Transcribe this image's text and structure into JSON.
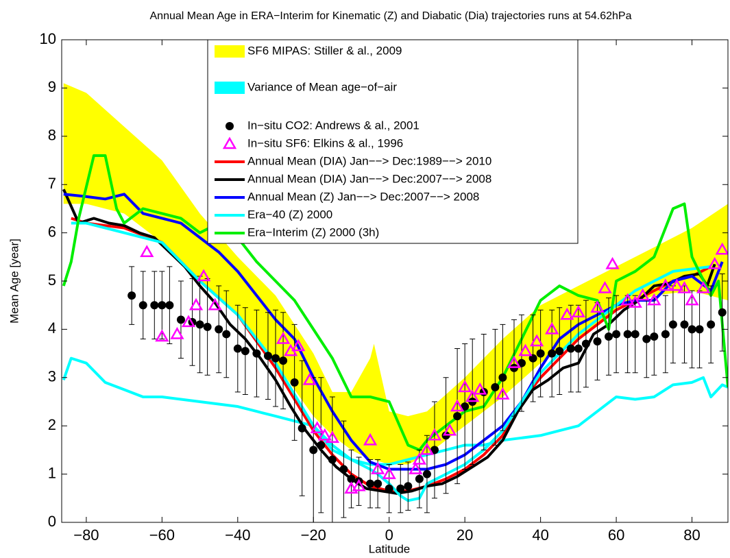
{
  "chart_data": {
    "type": "line",
    "title": "Annual Mean Age in ERA−Interim for Kinematic (Z) and Diabatic (Dia) trajectories runs at 54.62hPa",
    "xlabel": "Latitude",
    "ylabel": "Mean Age [year]",
    "xlim": [
      -86.5,
      89.5
    ],
    "ylim": [
      0,
      10
    ],
    "xticks": [
      {
        "value": -80,
        "label": "−80"
      },
      {
        "value": -60,
        "label": "−60"
      },
      {
        "value": -40,
        "label": "−40"
      },
      {
        "value": -20,
        "label": "−20"
      },
      0,
      20,
      40,
      60,
      80
    ],
    "yticks": [
      0,
      1,
      2,
      3,
      4,
      5,
      6,
      7,
      8,
      9,
      10
    ],
    "series": [
      {
        "name": "SF6 MIPAS: Stiller & al., 2009",
        "color": "#ffff00",
        "style": "band",
        "x": [
          -86,
          -80,
          -70,
          -60,
          -50,
          -40,
          -30,
          -20,
          -15,
          -10,
          -5,
          -4,
          0,
          5,
          10,
          20,
          30,
          40,
          50,
          60,
          70,
          80,
          89.5
        ],
        "high": [
          9.1,
          8.9,
          8.2,
          7.5,
          6.4,
          5.5,
          4.7,
          3.5,
          2.7,
          2.7,
          3.4,
          3.7,
          2.3,
          2.2,
          2.3,
          3.0,
          3.8,
          4.5,
          4.9,
          5.3,
          5.7,
          6.1,
          6.6
        ],
        "low": [
          6.6,
          6.6,
          6.4,
          5.8,
          5.0,
          4.3,
          3.3,
          2.2,
          1.8,
          1.5,
          1.3,
          1.3,
          1.2,
          1.2,
          1.4,
          2.0,
          2.6,
          3.3,
          3.8,
          4.4,
          4.7,
          4.8,
          4.6
        ]
      },
      {
        "name": "Variance of Mean age−of−air",
        "color": "#00ffff",
        "style": "patch-line",
        "x": [
          -86,
          -84,
          -80,
          -75,
          -70,
          -65,
          -60,
          -55,
          -50,
          -45,
          -40,
          -35,
          -30,
          -25,
          -20,
          -15,
          -10,
          -5,
          0,
          5,
          10,
          15,
          20,
          25,
          30,
          35,
          40,
          45,
          50,
          55,
          60,
          65,
          70,
          75,
          80,
          83,
          85,
          88,
          89.5
        ],
        "values": [
          2.95,
          3.4,
          3.3,
          2.9,
          2.75,
          2.6,
          2.6,
          2.55,
          2.5,
          2.45,
          2.4,
          2.3,
          2.2,
          2.1,
          2.0,
          1.5,
          1.3,
          1.2,
          1.2,
          1.3,
          1.4,
          1.5,
          1.6,
          1.6,
          1.7,
          1.75,
          1.8,
          1.9,
          2.0,
          2.3,
          2.6,
          2.55,
          2.6,
          2.85,
          2.9,
          3.0,
          2.6,
          2.85,
          2.8
        ]
      },
      {
        "name": "In−situ CO2: Andrews & al., 2001",
        "color": "#000000",
        "style": "errorbar",
        "x": [
          -68,
          -65,
          -62,
          -60,
          -58,
          -55,
          -52,
          -50,
          -48,
          -45,
          -43,
          -40,
          -38,
          -35,
          -32,
          -30,
          -28,
          -25,
          -23,
          -20,
          -18,
          -15,
          -12,
          -10,
          -8,
          -5,
          -3,
          0,
          3,
          5,
          8,
          10,
          12,
          15,
          18,
          20,
          22,
          25,
          28,
          30,
          33,
          35,
          38,
          40,
          43,
          45,
          48,
          50,
          52,
          55,
          58,
          60,
          63,
          65,
          68,
          70,
          73,
          75,
          78,
          80,
          82,
          85,
          88
        ],
        "values": [
          4.7,
          4.5,
          4.5,
          4.5,
          4.5,
          4.2,
          4.15,
          4.1,
          4.05,
          4.0,
          3.9,
          3.6,
          3.55,
          3.5,
          3.45,
          3.4,
          3.35,
          2.9,
          1.95,
          1.5,
          1.6,
          1.3,
          1.1,
          0.9,
          0.85,
          0.8,
          0.8,
          0.7,
          0.7,
          0.75,
          0.9,
          1.0,
          1.5,
          1.8,
          2.2,
          2.4,
          2.5,
          2.7,
          2.8,
          3.0,
          3.2,
          3.3,
          3.4,
          3.5,
          3.5,
          3.55,
          3.6,
          3.6,
          3.7,
          3.75,
          3.85,
          3.9,
          3.9,
          3.9,
          3.8,
          3.85,
          3.9,
          4.1,
          4.1,
          4.0,
          4.0,
          4.1,
          4.35
        ],
        "errors": [
          0.6,
          0.7,
          0.7,
          0.7,
          0.8,
          0.8,
          0.9,
          1.0,
          1.0,
          0.9,
          0.9,
          0.9,
          0.9,
          0.9,
          0.9,
          1.0,
          1.0,
          1.2,
          1.4,
          1.5,
          1.4,
          1.3,
          1.0,
          0.6,
          0.5,
          0.5,
          0.5,
          0.5,
          0.5,
          0.5,
          0.6,
          0.8,
          1.0,
          1.2,
          1.4,
          1.3,
          1.3,
          1.2,
          1.2,
          1.1,
          1.0,
          1.0,
          0.9,
          0.9,
          0.9,
          0.9,
          0.9,
          0.9,
          0.9,
          0.8,
          0.8,
          0.8,
          0.8,
          0.8,
          0.8,
          0.8,
          0.8,
          0.8,
          0.8,
          0.8,
          0.8,
          0.8,
          0.8
        ]
      },
      {
        "name": "In−situ SF6: Elkins & al., 1996",
        "color": "#ff00ff",
        "style": "triangle",
        "x": [
          -64,
          -60,
          -56,
          -53,
          -51,
          -49,
          -46,
          -28,
          -26,
          -24,
          -21,
          -19,
          -17,
          -15,
          -10,
          -8,
          -5,
          -3,
          0,
          7,
          8,
          10,
          12,
          16,
          18,
          20,
          22,
          24,
          30,
          33,
          36,
          39,
          43,
          47,
          50,
          55,
          57,
          59,
          63,
          65,
          67,
          70,
          73,
          76,
          78,
          80,
          83,
          86,
          88
        ],
        "values": [
          5.6,
          3.85,
          3.9,
          4.15,
          4.5,
          5.1,
          4.5,
          3.8,
          3.55,
          3.65,
          2.95,
          1.95,
          1.8,
          1.75,
          0.7,
          0.75,
          1.7,
          1.1,
          1.0,
          1.1,
          1.3,
          1.5,
          1.8,
          1.9,
          2.4,
          2.8,
          2.6,
          2.75,
          2.65,
          3.3,
          3.55,
          3.75,
          4.0,
          4.3,
          4.35,
          4.45,
          4.85,
          5.35,
          4.6,
          4.55,
          4.7,
          4.6,
          4.9,
          4.9,
          4.85,
          4.6,
          4.85,
          5.35,
          5.65
        ]
      },
      {
        "name": "Annual Mean (DIA) Jan−−> Dec:1989−−> 2010",
        "color": "#ff0000",
        "style": "line",
        "x": [
          -84,
          -80,
          -70,
          -60,
          -50,
          -40,
          -30,
          -20,
          -15,
          -10,
          -5,
          0,
          5,
          10,
          15,
          20,
          25,
          30,
          35,
          40,
          45,
          50,
          55,
          60,
          65,
          70,
          75,
          80,
          85
        ],
        "values": [
          6.3,
          6.2,
          6.1,
          5.8,
          5.0,
          4.3,
          3.2,
          1.9,
          1.4,
          1.0,
          0.75,
          0.65,
          0.65,
          0.75,
          0.9,
          1.1,
          1.4,
          1.8,
          2.5,
          3.0,
          3.4,
          3.8,
          4.1,
          4.4,
          4.6,
          4.8,
          5.0,
          5.1,
          5.3
        ]
      },
      {
        "name": "Annual Mean (DIA) Jan−−> Dec:2007−−> 2008",
        "color": "#000000",
        "style": "line",
        "x": [
          -86,
          -82,
          -78,
          -74,
          -70,
          -66,
          -62,
          -58,
          -54,
          -50,
          -46,
          -42,
          -38,
          -34,
          -30,
          -26,
          -22,
          -18,
          -14,
          -10,
          -6,
          -2,
          2,
          6,
          10,
          14,
          18,
          22,
          26,
          30,
          34,
          38,
          42,
          46,
          50,
          54,
          58,
          62,
          66,
          70,
          74,
          78,
          82,
          84,
          86
        ],
        "values": [
          6.9,
          6.2,
          6.3,
          6.2,
          6.15,
          6.0,
          5.9,
          5.6,
          5.3,
          4.9,
          4.55,
          4.1,
          3.8,
          3.4,
          2.95,
          2.4,
          1.9,
          1.5,
          1.15,
          0.9,
          0.7,
          0.65,
          0.6,
          0.65,
          0.75,
          0.8,
          0.95,
          1.15,
          1.35,
          1.7,
          2.3,
          2.75,
          2.95,
          3.2,
          3.3,
          3.9,
          4.1,
          4.4,
          4.6,
          4.9,
          4.95,
          5.1,
          5.15,
          4.9,
          5.35
        ]
      },
      {
        "name": "Annual Mean (Z) Jan−−> Dec:2007−−> 2008",
        "color": "#0000ff",
        "style": "line",
        "x": [
          -86,
          -80,
          -75,
          -70,
          -65,
          -60,
          -55,
          -50,
          -45,
          -40,
          -35,
          -30,
          -25,
          -20,
          -15,
          -10,
          -5,
          0,
          5,
          10,
          15,
          20,
          25,
          30,
          35,
          40,
          45,
          50,
          55,
          60,
          65,
          70,
          75,
          80,
          85,
          88
        ],
        "values": [
          6.8,
          6.75,
          6.7,
          6.8,
          6.4,
          6.3,
          6.2,
          5.9,
          5.6,
          5.2,
          4.7,
          4.2,
          3.8,
          3.0,
          2.3,
          1.7,
          1.25,
          1.1,
          1.1,
          1.1,
          1.2,
          1.4,
          1.7,
          2.0,
          2.5,
          3.2,
          3.8,
          4.1,
          4.3,
          4.5,
          4.6,
          4.6,
          5.0,
          5.1,
          4.8,
          5.4
        ]
      },
      {
        "name": "Era−40 (Z) 2000",
        "color": "#00ffff",
        "style": "line",
        "x": [
          -84,
          -80,
          -70,
          -60,
          -50,
          -40,
          -30,
          -20,
          -15,
          -10,
          -5,
          -3,
          0,
          3,
          5,
          8,
          10,
          15,
          20,
          25,
          30,
          35,
          40,
          45,
          50,
          55,
          60,
          65,
          70,
          75,
          80,
          85
        ],
        "values": [
          6.2,
          6.2,
          6.0,
          5.8,
          5.0,
          4.3,
          3.3,
          2.0,
          1.6,
          1.3,
          1.1,
          1.0,
          0.8,
          0.55,
          0.45,
          0.5,
          0.8,
          1.0,
          1.2,
          1.5,
          1.9,
          2.5,
          3.1,
          3.5,
          3.9,
          4.2,
          4.5,
          4.8,
          5.0,
          5.2,
          5.25,
          5.3
        ]
      },
      {
        "name": "Era−Interim (Z) 2000 (3h)",
        "color": "#00ee00",
        "style": "line",
        "x": [
          -86,
          -84,
          -82,
          -78,
          -75,
          -72,
          -70,
          -65,
          -60,
          -55,
          -50,
          -45,
          -40,
          -35,
          -30,
          -25,
          -20,
          -15,
          -10,
          -5,
          0,
          5,
          8,
          10,
          15,
          20,
          25,
          30,
          35,
          40,
          45,
          50,
          55,
          58,
          60,
          65,
          70,
          75,
          78,
          80,
          85,
          87,
          89.5
        ],
        "values": [
          4.9,
          5.4,
          6.3,
          7.6,
          7.6,
          6.5,
          6.2,
          6.5,
          6.4,
          6.3,
          6.0,
          6.2,
          5.9,
          5.4,
          5.0,
          4.6,
          4.0,
          3.4,
          2.6,
          2.6,
          2.5,
          1.6,
          1.5,
          1.7,
          2.0,
          2.3,
          2.4,
          3.0,
          3.8,
          4.6,
          4.9,
          4.7,
          4.6,
          4.0,
          5.0,
          5.2,
          5.5,
          6.5,
          6.6,
          5.5,
          4.7,
          5.0,
          2.8
        ]
      }
    ]
  }
}
